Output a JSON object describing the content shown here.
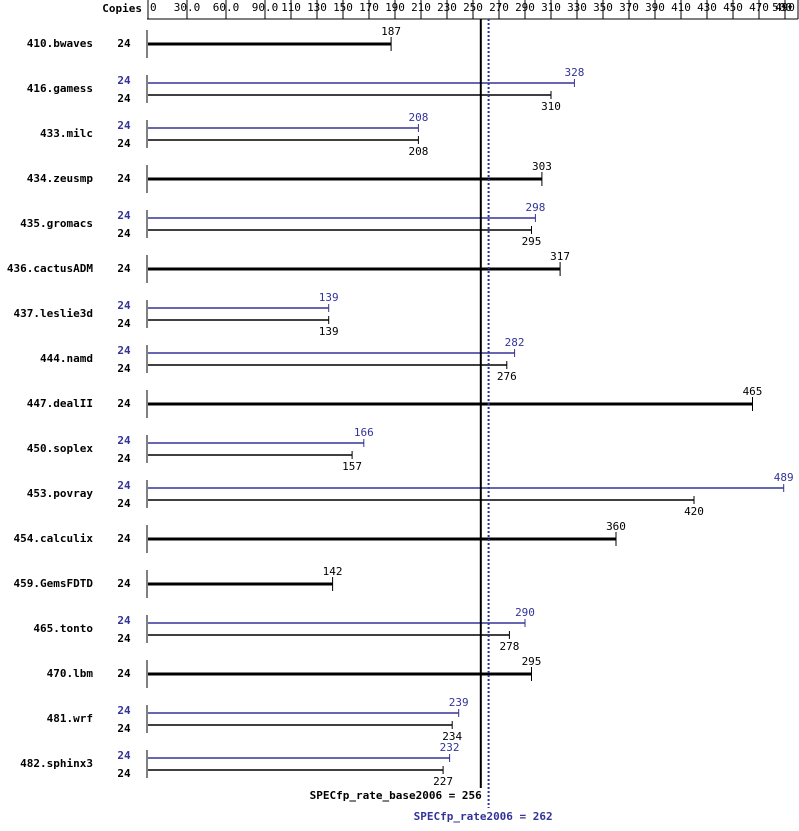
{
  "chart_data": {
    "type": "bar",
    "orientation": "horizontal",
    "copies_label": "Copies",
    "categories": [
      "410.bwaves",
      "416.gamess",
      "433.milc",
      "434.zeusmp",
      "435.gromacs",
      "436.cactusADM",
      "437.leslie3d",
      "444.namd",
      "447.dealII",
      "450.soplex",
      "453.povray",
      "454.calculix",
      "459.GemsFDTD",
      "465.tonto",
      "470.lbm",
      "481.wrf",
      "482.sphinx3"
    ],
    "series": [
      {
        "color": "#000000",
        "copies": [
          24,
          24,
          24,
          24,
          24,
          24,
          24,
          24,
          24,
          24,
          24,
          24,
          24,
          24,
          24,
          24,
          24
        ],
        "values": [
          187,
          310,
          208,
          303,
          295,
          317,
          139,
          276,
          465,
          157,
          420,
          360,
          142,
          278,
          295,
          234,
          227
        ]
      },
      {
        "color": "#333399",
        "copies": [
          null,
          24,
          24,
          null,
          24,
          null,
          24,
          24,
          null,
          24,
          24,
          null,
          null,
          24,
          null,
          24,
          24
        ],
        "values": [
          null,
          328,
          208,
          null,
          298,
          null,
          139,
          282,
          null,
          166,
          489,
          null,
          null,
          290,
          null,
          239,
          232
        ]
      }
    ],
    "xlim": [
      0,
      500
    ],
    "xticks": [
      0,
      {
        "value": 30,
        "label": "30.0"
      },
      {
        "value": 60,
        "label": "60.0"
      },
      {
        "value": 90,
        "label": "90.0"
      },
      110,
      130,
      150,
      170,
      190,
      210,
      230,
      250,
      270,
      290,
      310,
      330,
      350,
      370,
      390,
      410,
      430,
      450,
      470,
      490,
      500
    ],
    "reference_lines": [
      {
        "value": 256,
        "color": "#000000",
        "label": "SPECfp_rate_base2006 = 256"
      },
      {
        "value": 262,
        "color": "#333399",
        "label": "SPECfp_rate2006 = 262"
      }
    ]
  }
}
